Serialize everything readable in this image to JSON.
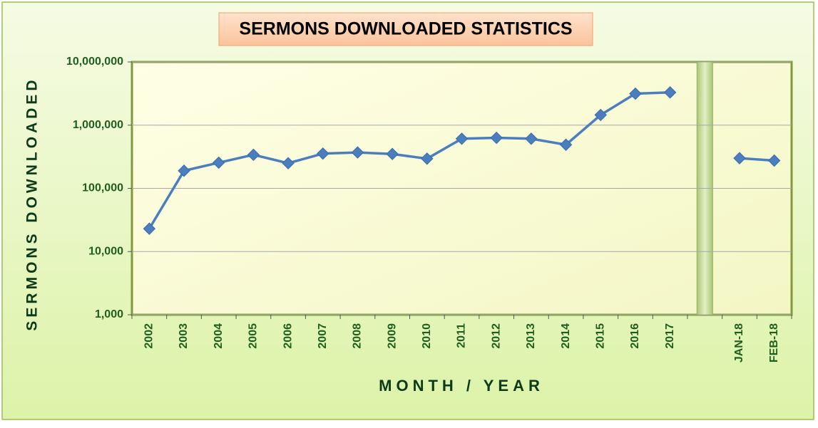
{
  "chart_data": {
    "type": "line",
    "title": "SERMONS DOWNLOADED STATISTICS",
    "x_label": "MONTH / YEAR",
    "y_label": "SERMONS DOWNLOADED",
    "categories": [
      "2002",
      "2003",
      "2004",
      "2005",
      "2006",
      "2007",
      "2008",
      "2009",
      "2010",
      "2011",
      "2012",
      "2013",
      "2014",
      "2015",
      "2016",
      "2017",
      null,
      "JAN-18",
      "FEB-18"
    ],
    "values": [
      23000,
      190000,
      255000,
      340000,
      250000,
      355000,
      370000,
      350000,
      295000,
      610000,
      630000,
      610000,
      490000,
      1450000,
      3150000,
      3300000,
      null,
      300000,
      275000
    ],
    "color": "#4a7ebf",
    "log_scale": true,
    "ylim": [
      1000,
      10000000
    ],
    "yticks": [
      {
        "value": 1000,
        "label": "1,000"
      },
      {
        "value": 10000,
        "label": "10,000"
      },
      {
        "value": 100000,
        "label": "100,000"
      },
      {
        "value": 1000000,
        "label": "1,000,000"
      },
      {
        "value": 10000000,
        "label": "10,000,000"
      }
    ],
    "grid": true
  }
}
